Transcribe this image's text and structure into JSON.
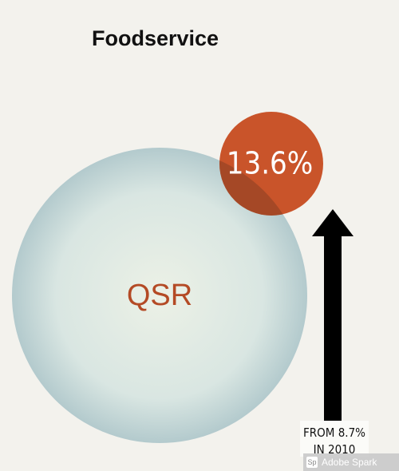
{
  "title": "Foodservice",
  "big_circle": {
    "label": "QSR"
  },
  "small_circle": {
    "label": "13.6%"
  },
  "note": {
    "lines": [
      "FROM 8.7%",
      "IN 2010"
    ]
  },
  "watermark": {
    "badge": "Sp",
    "text": "Adobe Spark"
  }
}
